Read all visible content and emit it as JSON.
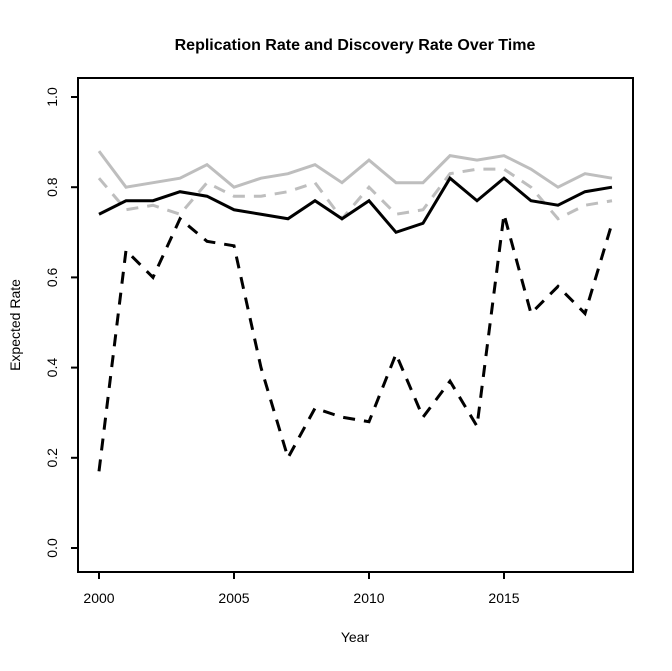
{
  "title": "Replication Rate and Discovery Rate Over Time",
  "chart_data": {
    "type": "line",
    "title": "Replication Rate and Discovery Rate Over Time",
    "xlabel": "Year",
    "ylabel": "Expected Rate",
    "x": [
      2000,
      2001,
      2002,
      2003,
      2004,
      2005,
      2006,
      2007,
      2008,
      2009,
      2010,
      2011,
      2012,
      2013,
      2014,
      2015,
      2016,
      2017,
      2018,
      2019
    ],
    "xticks": [
      2000,
      2005,
      2010,
      2015
    ],
    "ytick_labels": [
      "0.0",
      "0.2",
      "0.4",
      "0.6",
      "0.8",
      "1.0"
    ],
    "ytick_values": [
      0.0,
      0.2,
      0.4,
      0.6,
      0.8,
      1.0
    ],
    "xlim": [
      2000,
      2019
    ],
    "ylim": [
      0.0,
      1.0
    ],
    "grid": false,
    "legend_position": "none",
    "colors": {
      "black": "#000000",
      "gray": "#bebebe"
    },
    "series": [
      {
        "name": "Gray solid",
        "color": "#bebebe",
        "style": "solid",
        "values": [
          0.88,
          0.8,
          0.81,
          0.82,
          0.85,
          0.8,
          0.82,
          0.83,
          0.85,
          0.81,
          0.86,
          0.81,
          0.81,
          0.87,
          0.86,
          0.87,
          0.84,
          0.8,
          0.83,
          0.82
        ]
      },
      {
        "name": "Gray dashed",
        "color": "#bebebe",
        "style": "dashed",
        "values": [
          0.82,
          0.75,
          0.76,
          0.74,
          0.81,
          0.78,
          0.78,
          0.79,
          0.81,
          0.73,
          0.8,
          0.74,
          0.75,
          0.83,
          0.84,
          0.84,
          0.8,
          0.73,
          0.76,
          0.77
        ]
      },
      {
        "name": "Black solid",
        "color": "#000000",
        "style": "solid",
        "values": [
          0.74,
          0.77,
          0.77,
          0.79,
          0.78,
          0.75,
          0.74,
          0.73,
          0.77,
          0.73,
          0.77,
          0.7,
          0.72,
          0.82,
          0.77,
          0.82,
          0.77,
          0.76,
          0.79,
          0.8
        ]
      },
      {
        "name": "Black dashed",
        "color": "#000000",
        "style": "dashed",
        "values": [
          0.17,
          0.66,
          0.6,
          0.73,
          0.68,
          0.67,
          0.4,
          0.2,
          0.31,
          0.29,
          0.28,
          0.43,
          0.29,
          0.37,
          0.27,
          0.74,
          0.52,
          0.58,
          0.52,
          0.72
        ]
      }
    ]
  }
}
